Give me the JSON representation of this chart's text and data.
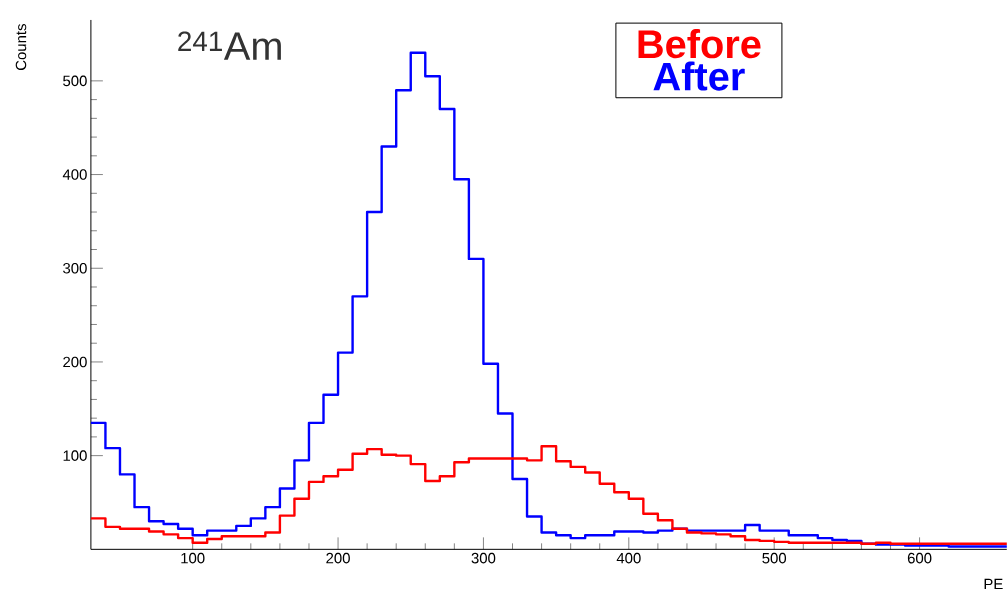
{
  "chart_data": {
    "type": "histogram",
    "title": "$^{241}$Am",
    "xlabel": "PE",
    "ylabel": "Counts",
    "bins": [
      30,
      40,
      50,
      60,
      70,
      80,
      90,
      100,
      110,
      120,
      130,
      140,
      150,
      160,
      170,
      180,
      190,
      200,
      210,
      220,
      230,
      240,
      250,
      260,
      270,
      280,
      290,
      300,
      310,
      320,
      330,
      340,
      350,
      360,
      370,
      380,
      390,
      400,
      410,
      420,
      430,
      440,
      450,
      460,
      470,
      480,
      490,
      500,
      510,
      520,
      530,
      540,
      550,
      560,
      570,
      580,
      590,
      600,
      610,
      620,
      630,
      640,
      650,
      660
    ],
    "series": [
      {
        "name": "Before",
        "color": "#ff0000",
        "values": [
          33,
          24,
          22,
          22,
          19,
          16,
          12,
          7,
          11,
          14,
          14,
          14,
          18,
          36,
          54,
          72,
          78,
          85,
          102,
          107,
          101,
          100,
          91,
          73,
          78,
          93,
          97,
          97,
          97,
          97,
          95,
          110,
          94,
          88,
          82,
          70,
          61,
          54,
          38,
          31,
          22,
          18,
          17,
          16,
          14,
          10,
          9,
          8,
          7,
          7,
          7,
          7,
          7,
          6,
          7,
          6,
          6,
          6,
          6,
          6,
          6,
          6,
          6
        ]
      },
      {
        "name": "After",
        "color": "#0000ff",
        "values": [
          135,
          108,
          80,
          45,
          30,
          27,
          22,
          15,
          20,
          20,
          25,
          33,
          45,
          65,
          95,
          135,
          165,
          210,
          270,
          360,
          430,
          490,
          530,
          505,
          470,
          395,
          310,
          198,
          145,
          75,
          35,
          18,
          15,
          12,
          15,
          15,
          19,
          19,
          18,
          20,
          22,
          20,
          20,
          20,
          20,
          26,
          20,
          20,
          15,
          15,
          12,
          10,
          9,
          6,
          5,
          5,
          4,
          4,
          4,
          3,
          3,
          3,
          3
        ]
      }
    ],
    "xlim": [
      30,
      660
    ],
    "ylim": [
      0,
      565
    ],
    "xticks": [
      100,
      200,
      300,
      400,
      500,
      600
    ],
    "yticks": [
      100,
      200,
      300,
      400,
      500
    ],
    "legend": "top right",
    "grid": false
  }
}
